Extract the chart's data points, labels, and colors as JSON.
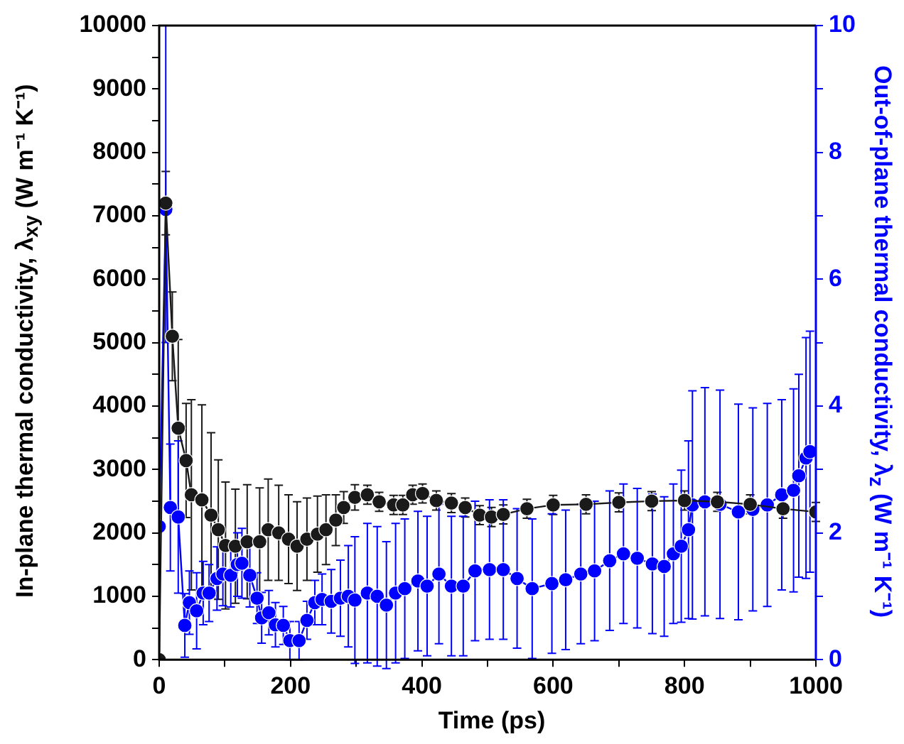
{
  "chart_data": {
    "type": "line",
    "xlabel": "Time (ps)",
    "ylabel": "In-plane thermal conductivity, λ$_{xy}$ (W m⁻¹ K⁻¹)",
    "y2label": "Out-of-plane thermal conductivity, λ$_{z}$ (W m⁻¹ K⁻¹)",
    "xlim": [
      0,
      1000
    ],
    "xticks": [
      0,
      {
        "value": 100,
        "label": null
      },
      200,
      {
        "value": 300,
        "label": null
      },
      400,
      {
        "value": 500,
        "label": null
      },
      600,
      {
        "value": 700,
        "label": null
      },
      800,
      {
        "value": 900,
        "label": null
      },
      1000
    ],
    "ylim": [
      0,
      10000
    ],
    "yticks": [
      0,
      {
        "value": 500,
        "label": null
      },
      1000,
      {
        "value": 1500,
        "label": null
      },
      2000,
      {
        "value": 2500,
        "label": null
      },
      3000,
      {
        "value": 3500,
        "label": null
      },
      4000,
      {
        "value": 4500,
        "label": null
      },
      5000,
      {
        "value": 5500,
        "label": null
      },
      6000,
      {
        "value": 6500,
        "label": null
      },
      7000,
      {
        "value": 7500,
        "label": null
      },
      8000,
      {
        "value": 8500,
        "label": null
      },
      9000,
      {
        "value": 9500,
        "label": null
      },
      10000
    ],
    "y2lim": [
      0,
      10
    ],
    "y2ticks": [
      0,
      {
        "value": 1,
        "label": null
      },
      2,
      {
        "value": 3,
        "label": null
      },
      4,
      {
        "value": 5,
        "label": null
      },
      6,
      {
        "value": 7,
        "label": null
      },
      8,
      {
        "value": 9,
        "label": null
      },
      10
    ],
    "grid": false,
    "legend": false,
    "marker": "circle",
    "line_style": "solid",
    "series": [
      {
        "color": "#1a1a1a",
        "x": [
          0,
          10,
          20,
          29,
          41,
          49,
          65,
          79,
          90,
          101,
          116,
          134,
          153,
          166,
          182,
          197,
          210,
          225,
          241,
          254,
          269,
          281,
          298,
          317,
          335,
          357,
          371,
          386,
          401,
          422,
          445,
          466,
          488,
          506,
          524,
          560,
          600,
          650,
          700,
          750,
          800,
          850,
          900,
          950,
          1000
        ],
        "values": [
          0,
          7200,
          5100,
          3650,
          3140,
          2600,
          2520,
          2280,
          2050,
          1800,
          1790,
          1860,
          1860,
          2050,
          2000,
          1900,
          1790,
          1900,
          1980,
          2050,
          2200,
          2400,
          2560,
          2600,
          2490,
          2440,
          2440,
          2600,
          2620,
          2510,
          2470,
          2400,
          2280,
          2250,
          2290,
          2380,
          2440,
          2450,
          2480,
          2500,
          2510,
          2490,
          2450,
          2380,
          2330
        ],
        "errors": [
          null,
          500,
          700,
          1400,
          900,
          1500,
          1500,
          1300,
          1100,
          1000,
          900,
          900,
          850,
          800,
          750,
          700,
          700,
          650,
          600,
          550,
          400,
          250,
          200,
          150,
          150,
          150,
          150,
          150,
          150,
          150,
          150,
          150,
          150,
          150,
          150,
          150,
          150,
          150,
          150,
          150,
          150,
          150,
          150,
          150,
          150
        ]
      },
      {
        "color": "#0000ff",
        "axis": "y2",
        "x": [
          0,
          10,
          17,
          29,
          39,
          46,
          57,
          67,
          76,
          88,
          97,
          109,
          119,
          126,
          138,
          149,
          156,
          167,
          177,
          189,
          199,
          213,
          225,
          237,
          248,
          262,
          276,
          288,
          298,
          317,
          332,
          346,
          360,
          374,
          394,
          408,
          426,
          445,
          463,
          481,
          503,
          524,
          545,
          568,
          598,
          619,
          642,
          663,
          686,
          707,
          728,
          751,
          769,
          783,
          795,
          806,
          812,
          831,
          854,
          882,
          904,
          926,
          948,
          966,
          974,
          985,
          991
        ],
        "values": [
          2.1,
          7.1,
          2.4,
          2.25,
          0.54,
          0.9,
          0.77,
          1.05,
          1.05,
          1.28,
          1.35,
          1.33,
          1.5,
          1.52,
          1.33,
          0.97,
          0.66,
          0.74,
          0.55,
          0.54,
          0.3,
          0.3,
          0.62,
          0.9,
          0.95,
          0.92,
          0.97,
          1.0,
          0.94,
          1.05,
          1.0,
          0.86,
          1.05,
          1.12,
          1.24,
          1.16,
          1.35,
          1.16,
          1.16,
          1.4,
          1.42,
          1.42,
          1.28,
          1.12,
          1.2,
          1.26,
          1.35,
          1.4,
          1.56,
          1.67,
          1.6,
          1.51,
          1.47,
          1.67,
          1.79,
          2.05,
          2.44,
          2.49,
          2.45,
          2.33,
          2.37,
          2.44,
          2.6,
          2.67,
          2.9,
          3.18,
          3.28
        ],
        "errors": [
          null,
          [
            5.0,
            10.0
          ],
          1.0,
          1.2,
          0.5,
          0.5,
          0.6,
          0.5,
          0.45,
          0.5,
          0.5,
          0.5,
          0.5,
          0.55,
          0.5,
          0.4,
          0.4,
          0.35,
          0.35,
          0.3,
          0.3,
          0.3,
          0.3,
          0.35,
          0.4,
          0.5,
          0.6,
          0.8,
          1.0,
          1.1,
          1.1,
          1.0,
          1.1,
          1.1,
          1.1,
          1.1,
          1.1,
          1.1,
          1.1,
          1.1,
          1.1,
          1.1,
          1.1,
          1.1,
          1.1,
          1.1,
          1.1,
          1.1,
          1.1,
          1.1,
          1.1,
          1.1,
          1.1,
          1.1,
          1.2,
          1.4,
          1.8,
          1.8,
          1.8,
          1.7,
          1.6,
          1.6,
          1.5,
          1.6,
          1.6,
          1.9,
          1.9
        ]
      }
    ]
  }
}
